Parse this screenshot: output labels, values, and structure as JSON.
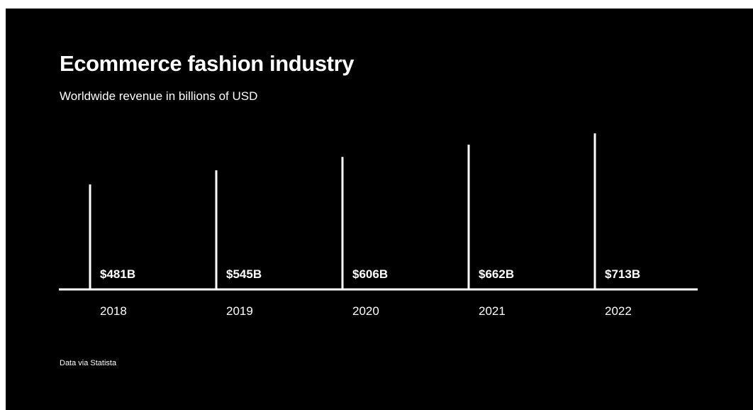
{
  "header": {
    "title": "Ecommerce fashion industry",
    "subtitle": "Worldwide revenue in billions of USD"
  },
  "footer": {
    "source": "Data via Statista"
  },
  "colors": {
    "background": "#000000",
    "foreground": "#ffffff"
  },
  "chart_data": {
    "type": "bar",
    "title": "Ecommerce fashion industry",
    "subtitle": "Worldwide revenue in billions of USD",
    "categories": [
      "2018",
      "2019",
      "2020",
      "2021",
      "2022"
    ],
    "values": [
      481,
      545,
      606,
      662,
      713
    ],
    "value_labels": [
      "$481B",
      "$545B",
      "$606B",
      "$662B",
      "$713B"
    ],
    "unit": "billions of USD",
    "grid": false,
    "legend": "none"
  }
}
